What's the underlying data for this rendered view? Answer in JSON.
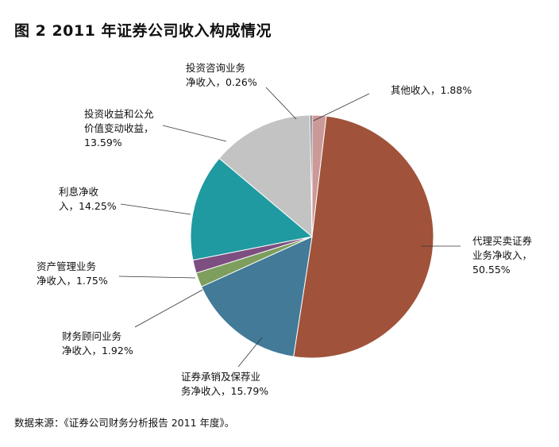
{
  "title": "图 2  2011 年证券公司收入构成情况",
  "source": "数据来源：《证券公司财务分析报告 2011 年度》。",
  "chart_data": {
    "type": "pie",
    "title": "图 2  2011 年证券公司收入构成情况",
    "unit": "%",
    "slices": [
      {
        "lines": [
          "其他收入，1.88%"
        ],
        "value": 1.88,
        "color": "#cc9999"
      },
      {
        "lines": [
          "代理买卖证券",
          "业务净收入，",
          "50.55%"
        ],
        "value": 50.55,
        "color": "#a0533a"
      },
      {
        "lines": [
          "证券承销及保荐业",
          "务净收入，15.79%"
        ],
        "value": 15.79,
        "color": "#427a98"
      },
      {
        "lines": [
          "财务顾问业务",
          "净收入，1.92%"
        ],
        "value": 1.92,
        "color": "#7e9e5e"
      },
      {
        "lines": [
          "资产管理业务",
          "净收入，1.75%"
        ],
        "value": 1.75,
        "color": "#7c4f80"
      },
      {
        "lines": [
          "利息净收",
          "入，14.25%"
        ],
        "value": 14.25,
        "color": "#1f9aa0"
      },
      {
        "lines": [
          "投资收益和公允",
          "价值变动收益，",
          "13.59%"
        ],
        "value": 13.59,
        "color": "#c3c3c3"
      },
      {
        "lines": [
          "投资咨询业务",
          "净收入，0.26%"
        ],
        "value": 0.26,
        "color": "#555a66"
      }
    ]
  }
}
